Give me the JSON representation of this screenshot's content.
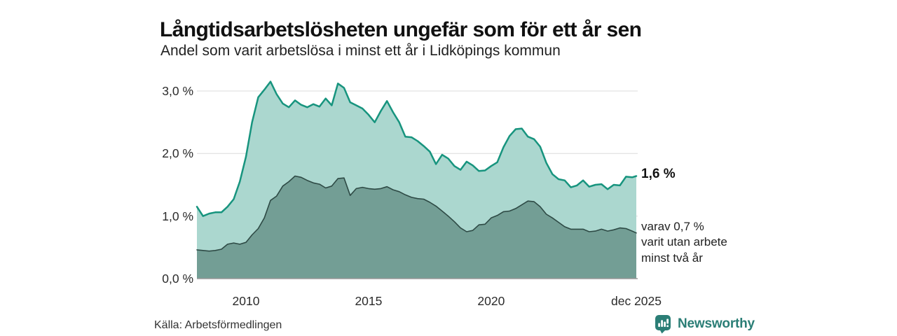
{
  "header": {
    "title": "Långtidsarbetslösheten ungefär som för ett år sen",
    "subtitle": "Andel som varit arbetslösa i minst ett år i Lidköpings kommun"
  },
  "chart_data": {
    "type": "area",
    "title": "Långtidsarbetslösheten ungefär som för ett år sen",
    "subtitle": "Andel som varit arbetslösa i minst ett år i Lidköpings kommun",
    "xlabel": "",
    "ylabel": "",
    "x_unit": "decimal_year",
    "ylim": [
      0,
      3.22
    ],
    "grid": "horizontal",
    "legend_position": "none",
    "x": [
      2008.0,
      2008.25,
      2008.5,
      2008.75,
      2009.0,
      2009.25,
      2009.5,
      2009.75,
      2010.0,
      2010.25,
      2010.5,
      2010.75,
      2011.0,
      2011.25,
      2011.5,
      2011.75,
      2012.0,
      2012.25,
      2012.5,
      2012.75,
      2013.0,
      2013.25,
      2013.5,
      2013.75,
      2014.0,
      2014.25,
      2014.5,
      2014.75,
      2015.0,
      2015.25,
      2015.5,
      2015.75,
      2016.0,
      2016.25,
      2016.5,
      2016.75,
      2017.0,
      2017.25,
      2017.5,
      2017.75,
      2018.0,
      2018.25,
      2018.5,
      2018.75,
      2019.0,
      2019.25,
      2019.5,
      2019.75,
      2020.0,
      2020.25,
      2020.5,
      2020.75,
      2021.0,
      2021.25,
      2021.5,
      2021.75,
      2022.0,
      2022.25,
      2022.5,
      2022.75,
      2023.0,
      2023.25,
      2023.5,
      2023.75,
      2024.0,
      2024.25,
      2024.5,
      2024.75,
      2025.0,
      2025.25,
      2025.5,
      2025.75,
      2025.92
    ],
    "series": [
      {
        "name": "Andel som varit arbetslösa minst ett år",
        "fill": "#abd7cf",
        "stroke": "#17947e",
        "stroke_width": 2.5,
        "values": [
          1.15,
          1.0,
          1.04,
          1.06,
          1.06,
          1.15,
          1.27,
          1.55,
          1.95,
          2.5,
          2.9,
          3.02,
          3.15,
          2.95,
          2.8,
          2.74,
          2.85,
          2.78,
          2.74,
          2.79,
          2.75,
          2.88,
          2.77,
          3.12,
          3.05,
          2.82,
          2.77,
          2.72,
          2.62,
          2.5,
          2.68,
          2.84,
          2.66,
          2.5,
          2.27,
          2.26,
          2.2,
          2.12,
          2.03,
          1.83,
          1.98,
          1.92,
          1.8,
          1.74,
          1.87,
          1.81,
          1.72,
          1.73,
          1.8,
          1.86,
          2.1,
          2.28,
          2.39,
          2.4,
          2.27,
          2.23,
          2.11,
          1.85,
          1.67,
          1.59,
          1.57,
          1.46,
          1.49,
          1.57,
          1.47,
          1.5,
          1.51,
          1.43,
          1.5,
          1.49,
          1.63,
          1.62,
          1.64
        ]
      },
      {
        "name": "varav arbetslösa minst två år",
        "fill": "#739e95",
        "stroke": "#2e4a45",
        "stroke_width": 1.6,
        "values": [
          0.46,
          0.45,
          0.44,
          0.45,
          0.47,
          0.55,
          0.57,
          0.55,
          0.58,
          0.7,
          0.8,
          0.97,
          1.25,
          1.32,
          1.48,
          1.55,
          1.64,
          1.62,
          1.57,
          1.53,
          1.51,
          1.45,
          1.48,
          1.6,
          1.61,
          1.33,
          1.44,
          1.46,
          1.44,
          1.43,
          1.44,
          1.47,
          1.42,
          1.39,
          1.34,
          1.3,
          1.28,
          1.27,
          1.22,
          1.16,
          1.08,
          1.0,
          0.91,
          0.81,
          0.75,
          0.77,
          0.86,
          0.87,
          0.97,
          1.01,
          1.07,
          1.08,
          1.12,
          1.18,
          1.24,
          1.23,
          1.15,
          1.03,
          0.97,
          0.9,
          0.83,
          0.79,
          0.79,
          0.79,
          0.75,
          0.76,
          0.79,
          0.76,
          0.78,
          0.81,
          0.8,
          0.76,
          0.73
        ]
      }
    ],
    "y_ticks": [
      {
        "value": 0,
        "label": "0,0 %"
      },
      {
        "value": 1,
        "label": "1,0 %"
      },
      {
        "value": 2,
        "label": "2,0 %"
      },
      {
        "value": 3,
        "label": "3,0 %"
      }
    ],
    "x_ticks": [
      {
        "value": 2010,
        "label": "2010"
      },
      {
        "value": 2015,
        "label": "2015"
      },
      {
        "value": 2020,
        "label": "2020"
      },
      {
        "value": 2025.92,
        "label": "dec 2025"
      }
    ],
    "annotations": [
      {
        "text": "1,6 %"
      },
      {
        "lines": [
          "varav 0,7 %",
          "varit utan arbete",
          "minst två år"
        ]
      }
    ]
  },
  "footer": {
    "source": "Källa: Arbetsförmedlingen",
    "brand": "Newsworthy"
  },
  "colors": {
    "accent_line": "#17947e",
    "light_fill": "#abd7cf",
    "dark_fill": "#739e95",
    "dark_line": "#2e4a45",
    "grid": "#e4e4e4",
    "baseline": "#999999",
    "logo_teal": "#2b7e76"
  },
  "icons": {
    "brand_logo": "newsworthy-barchart-pin-icon"
  }
}
